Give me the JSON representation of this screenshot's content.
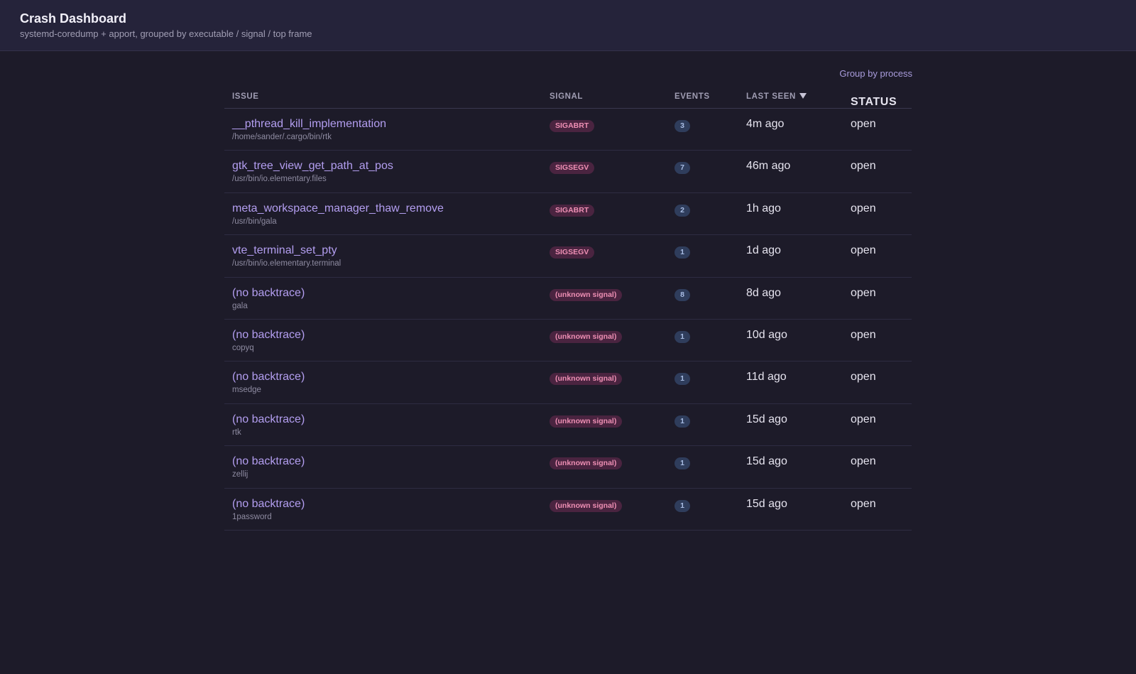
{
  "header": {
    "title": "Crash Dashboard",
    "subtitle": "systemd-coredump + apport, grouped by executable / signal / top frame"
  },
  "toolbar": {
    "group_link": "Group by process"
  },
  "table": {
    "columns": {
      "issue": "ISSUE",
      "signal": "SIGNAL",
      "events": "EVENTS",
      "last_seen": "LAST SEEN",
      "status": "STATUS"
    },
    "sort": {
      "column": "last_seen",
      "direction": "descending",
      "icon": "triangle-down-icon"
    },
    "rows": [
      {
        "title": "__pthread_kill_implementation",
        "path": "/home/sander/.cargo/bin/rtk",
        "signal": "SIGABRT",
        "events": "3",
        "last_seen": "4m ago",
        "status": "open"
      },
      {
        "title": "gtk_tree_view_get_path_at_pos",
        "path": "/usr/bin/io.elementary.files",
        "signal": "SIGSEGV",
        "events": "7",
        "last_seen": "46m ago",
        "status": "open"
      },
      {
        "title": "meta_workspace_manager_thaw_remove",
        "path": "/usr/bin/gala",
        "signal": "SIGABRT",
        "events": "2",
        "last_seen": "1h ago",
        "status": "open"
      },
      {
        "title": "vte_terminal_set_pty",
        "path": "/usr/bin/io.elementary.terminal",
        "signal": "SIGSEGV",
        "events": "1",
        "last_seen": "1d ago",
        "status": "open"
      },
      {
        "title": "(no backtrace)",
        "path": "gala",
        "signal": "(unknown signal)",
        "events": "8",
        "last_seen": "8d ago",
        "status": "open"
      },
      {
        "title": "(no backtrace)",
        "path": "copyq",
        "signal": "(unknown signal)",
        "events": "1",
        "last_seen": "10d ago",
        "status": "open"
      },
      {
        "title": "(no backtrace)",
        "path": "msedge",
        "signal": "(unknown signal)",
        "events": "1",
        "last_seen": "11d ago",
        "status": "open"
      },
      {
        "title": "(no backtrace)",
        "path": "rtk",
        "signal": "(unknown signal)",
        "events": "1",
        "last_seen": "15d ago",
        "status": "open"
      },
      {
        "title": "(no backtrace)",
        "path": "zellij",
        "signal": "(unknown signal)",
        "events": "1",
        "last_seen": "15d ago",
        "status": "open"
      },
      {
        "title": "(no backtrace)",
        "path": "1password",
        "signal": "(unknown signal)",
        "events": "1",
        "last_seen": "15d ago",
        "status": "open"
      }
    ]
  },
  "colors": {
    "background": "#1d1b29",
    "header_background": "#25233a",
    "accent": "#b39ef0",
    "signal_badge_bg": "#4a2440",
    "signal_badge_text": "#ee8fb4",
    "events_badge_bg": "#2f3d5c",
    "events_badge_text": "#a9bde4"
  }
}
